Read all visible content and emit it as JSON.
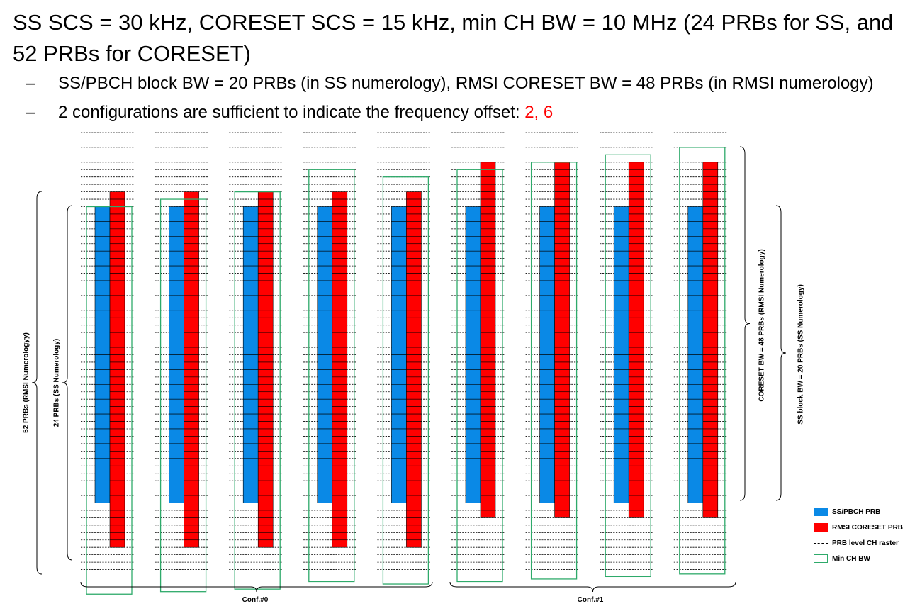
{
  "title": "SS SCS = 30 kHz, CORESET SCS = 15 kHz, min CH BW = 10 MHz (24 PRBs for SS, and 52 PRBs for CORESET)",
  "bullets": [
    {
      "dash": "–",
      "text": "SS/PBCH block BW = 20 PRBs (in SS numerology), RMSI CORESET BW = 48 PRBs (in RMSI numerology)",
      "highlight": ""
    },
    {
      "dash": "–",
      "text": "2 configurations are sufficient to indicate the frequency offset: ",
      "highlight": "2, 6"
    }
  ],
  "labels": {
    "left_outer": "52 PRBs (RMSI Numerologyy)",
    "left_inner": "24 PRBs (SS Numerology)",
    "right_coreset": "CORESET BW = 48 PRBs (RMSI Numerology)",
    "right_ss": "SS block BW = 20 PRBs (SS Numerology)",
    "conf0": "Conf.#0",
    "conf1": "Conf.#1"
  },
  "legend": {
    "ss": "SS/PBCH PRB",
    "rmsi": "RMSI CORESET PRB",
    "raster": "PRB level CH raster",
    "minbw": "Min CH BW"
  },
  "colors": {
    "ss": "#0a89e6",
    "rmsi": "#ff0000",
    "minbw": "#2eaa6a"
  },
  "diagram": {
    "raster_rows": 60,
    "ss_prbs": 20,
    "coreset_prbs": 48,
    "min_bw_rows": 60,
    "columns": [
      {
        "ss_start": 10,
        "coreset_start": 8,
        "minbw_start": 10
      },
      {
        "ss_start": 10,
        "coreset_start": 8,
        "minbw_start": 9
      },
      {
        "ss_start": 10,
        "coreset_start": 8,
        "minbw_start": 8
      },
      {
        "ss_start": 10,
        "coreset_start": 8,
        "minbw_start": 5
      },
      {
        "ss_start": 10,
        "coreset_start": 8,
        "minbw_start": 6
      },
      {
        "ss_start": 10,
        "coreset_start": 4,
        "minbw_start": 5
      },
      {
        "ss_start": 10,
        "coreset_start": 4,
        "minbw_start": 4
      },
      {
        "ss_start": 10,
        "coreset_start": 4,
        "minbw_start": 3
      },
      {
        "ss_start": 10,
        "coreset_start": 4,
        "minbw_start": 2
      }
    ]
  }
}
